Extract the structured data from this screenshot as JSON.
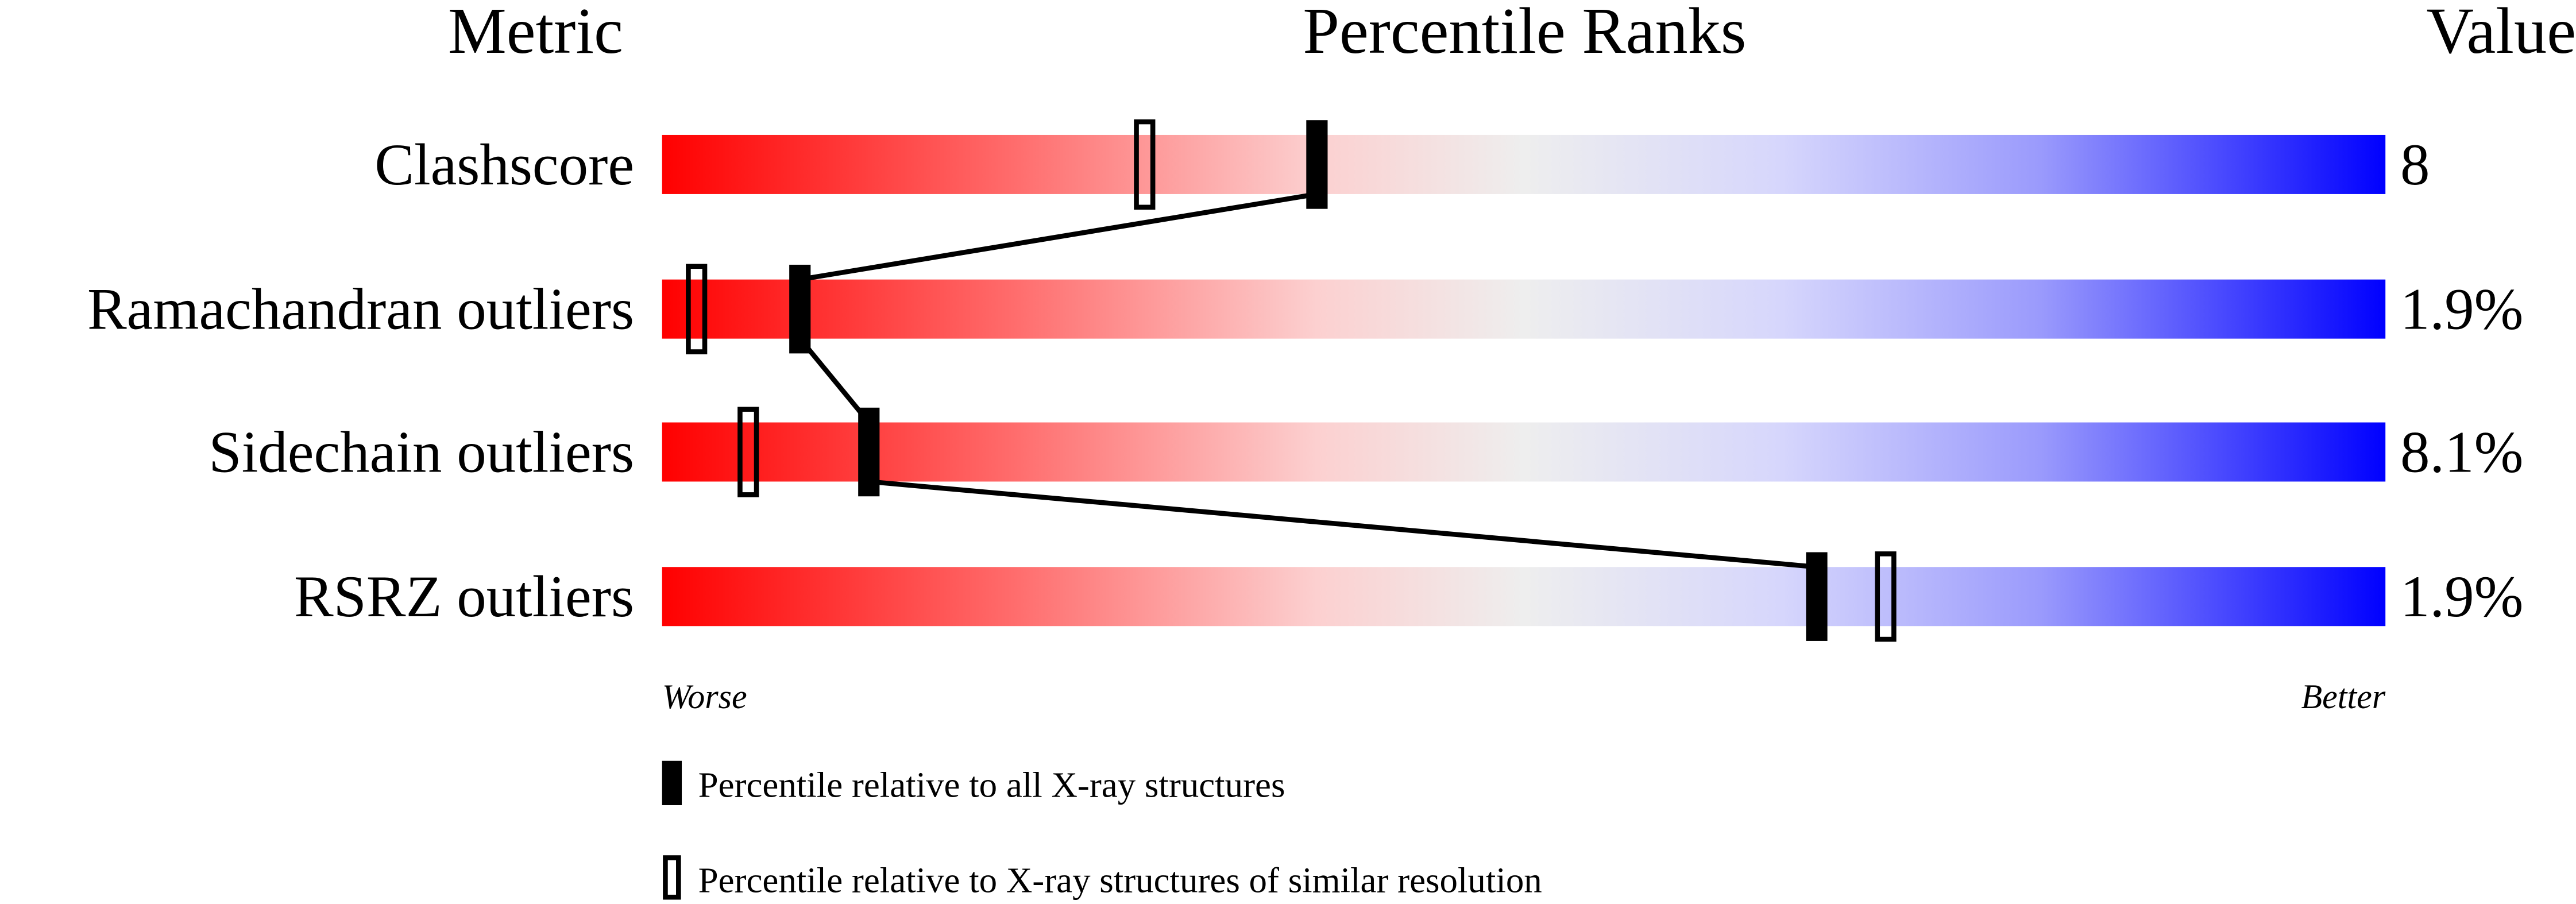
{
  "chart_data": {
    "type": "percentile-slider",
    "headers": {
      "metric": "Metric",
      "percentile": "Percentile Ranks",
      "value": "Value"
    },
    "xlim": [
      0,
      100
    ],
    "rows": [
      {
        "metric": "Clashscore",
        "value": "8",
        "percentile_all": 38,
        "percentile_similar": 28
      },
      {
        "metric": "Ramachandran outliers",
        "value": "1.9%",
        "percentile_all": 8,
        "percentile_similar": 2
      },
      {
        "metric": "Sidechain outliers",
        "value": "8.1%",
        "percentile_all": 12,
        "percentile_similar": 5
      },
      {
        "metric": "RSRZ outliers",
        "value": "1.9%",
        "percentile_all": 67,
        "percentile_similar": 71
      }
    ],
    "axis_labels": {
      "left": "Worse",
      "right": "Better"
    },
    "legend": [
      {
        "marker": "filled",
        "label": "Percentile relative to all X-ray structures"
      },
      {
        "marker": "open",
        "label": "Percentile relative to X-ray structures of similar resolution"
      }
    ],
    "colors": {
      "worse": "#ff0000",
      "middle": "#eeeeee",
      "better": "#0000ff",
      "marker": "#000000"
    }
  }
}
